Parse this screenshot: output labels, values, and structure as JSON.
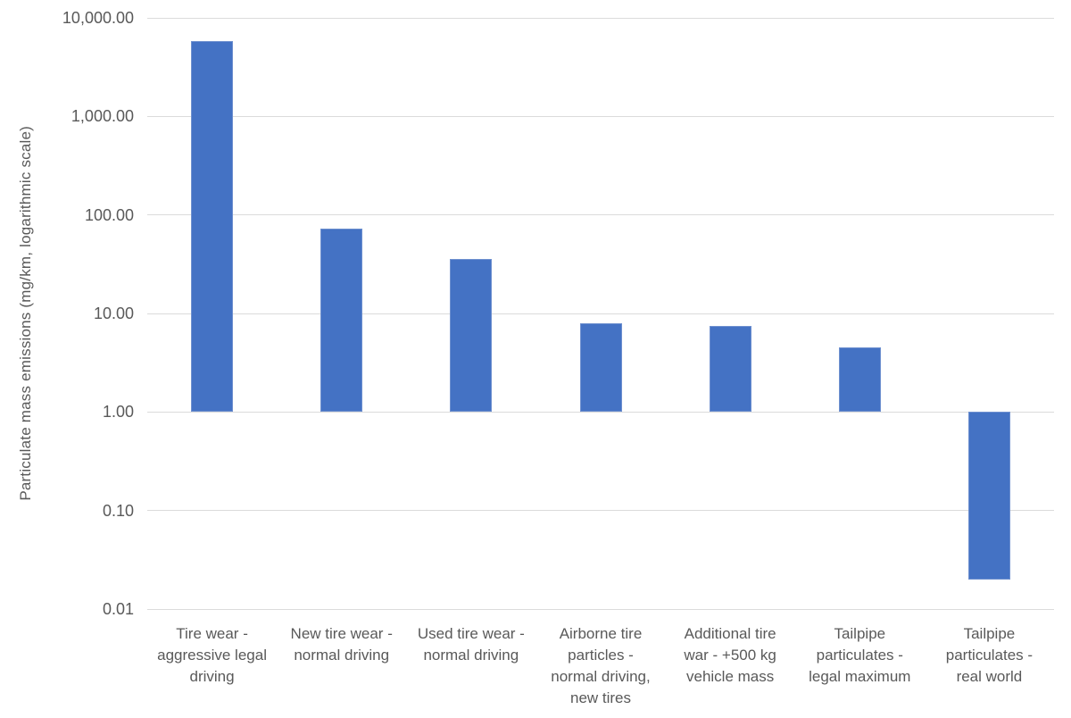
{
  "chart_data": {
    "type": "bar",
    "title": "",
    "xlabel": "",
    "ylabel": "Particulate mass emissions (mg/km, logarithmic scale)",
    "yscale": "log",
    "ylim": [
      0.01,
      10000
    ],
    "baseline": 1,
    "grid": true,
    "legend": "none",
    "yticks": [
      10000,
      1000,
      100,
      10,
      1,
      0.1,
      0.01
    ],
    "ytick_labels": [
      "10,000.00",
      "1,000.00",
      "100.00",
      "10.00",
      "1.00",
      "0.10",
      "0.01"
    ],
    "categories": [
      "Tire wear -\naggressive legal\ndriving",
      "New tire wear -\nnormal driving",
      "Used tire wear -\nnormal driving",
      "Airborne tire\nparticles -\nnormal driving,\nnew tires",
      "Additional tire\nwar - +500 kg\nvehicle mass",
      "Tailpipe\nparticulates -\nlegal maximum",
      "Tailpipe\nparticulates -\nreal world"
    ],
    "values": [
      5800,
      73,
      36,
      8,
      7.5,
      4.5,
      0.02
    ],
    "colors": {
      "bar_fill": "#4472C4",
      "bar_border": "#6E90CF",
      "gridline": "#DBDBDB",
      "tick_text": "#595959",
      "axis_title_text": "#595959"
    }
  }
}
